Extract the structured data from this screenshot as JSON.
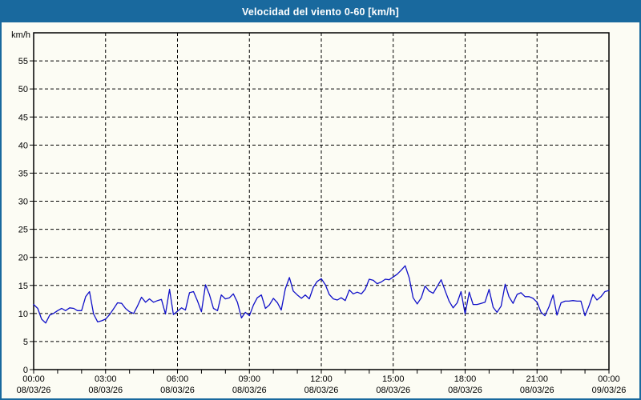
{
  "window": {
    "title": "Velocidad del viento 0-60 [km/h]"
  },
  "colors": {
    "titlebar_bg": "#19699E",
    "titlebar_text": "#FFFFFF",
    "frame": "#19699E",
    "page_bg": "#FCFCF4",
    "line": "#1010C8",
    "grid": "#000000",
    "text": "#000000"
  },
  "chart_data": {
    "type": "line",
    "title": "Velocidad del viento 0-60 [km/h]",
    "unit_label": "km/h",
    "x_unit": "hours",
    "xlim": [
      0,
      24
    ],
    "ylim": [
      0,
      60
    ],
    "y_tick_step": 5,
    "y_tick_max": 55,
    "grid": "dashed",
    "legend": "none",
    "x_minor_tick_hours": 1,
    "x_major_ticks": [
      {
        "hour": 0,
        "time": "00:00",
        "date": "08/03/26"
      },
      {
        "hour": 3,
        "time": "03:00",
        "date": "08/03/26"
      },
      {
        "hour": 6,
        "time": "06:00",
        "date": "08/03/26"
      },
      {
        "hour": 9,
        "time": "09:00",
        "date": "08/03/26"
      },
      {
        "hour": 12,
        "time": "12:00",
        "date": "08/03/26"
      },
      {
        "hour": 15,
        "time": "15:00",
        "date": "08/03/26"
      },
      {
        "hour": 18,
        "time": "18:00",
        "date": "08/03/26"
      },
      {
        "hour": 21,
        "time": "21:00",
        "date": "08/03/26"
      },
      {
        "hour": 24,
        "time": "00:00",
        "date": "09/03/26"
      }
    ],
    "series": [
      {
        "name": "velocidad-del-viento",
        "color": "#1010C8",
        "points": [
          [
            0,
            11.6
          ],
          [
            0.17,
            10.9
          ],
          [
            0.33,
            9
          ],
          [
            0.5,
            8.3
          ],
          [
            0.67,
            9.7
          ],
          [
            0.83,
            10
          ],
          [
            1,
            10.5
          ],
          [
            1.17,
            10.9
          ],
          [
            1.33,
            10.5
          ],
          [
            1.5,
            11
          ],
          [
            1.67,
            10.9
          ],
          [
            1.83,
            10.5
          ],
          [
            2,
            10.5
          ],
          [
            2.17,
            13
          ],
          [
            2.33,
            13.9
          ],
          [
            2.5,
            9.9
          ],
          [
            2.67,
            8.5
          ],
          [
            2.83,
            8.7
          ],
          [
            3,
            9
          ],
          [
            3.17,
            9.8
          ],
          [
            3.33,
            10.8
          ],
          [
            3.5,
            11.9
          ],
          [
            3.67,
            11.8
          ],
          [
            3.83,
            10.9
          ],
          [
            4,
            10.3
          ],
          [
            4.17,
            10
          ],
          [
            4.33,
            11.3
          ],
          [
            4.5,
            12.9
          ],
          [
            4.67,
            12
          ],
          [
            4.83,
            12.6
          ],
          [
            5,
            12
          ],
          [
            5.17,
            12.3
          ],
          [
            5.33,
            12.5
          ],
          [
            5.5,
            9.9
          ],
          [
            5.67,
            14.3
          ],
          [
            5.83,
            9.8
          ],
          [
            6,
            10.4
          ],
          [
            6.17,
            11
          ],
          [
            6.33,
            10.6
          ],
          [
            6.5,
            13.7
          ],
          [
            6.67,
            13.9
          ],
          [
            6.83,
            12.3
          ],
          [
            7,
            10.3
          ],
          [
            7.17,
            15.1
          ],
          [
            7.33,
            13.4
          ],
          [
            7.5,
            10.9
          ],
          [
            7.67,
            10.5
          ],
          [
            7.83,
            13.3
          ],
          [
            8,
            12.6
          ],
          [
            8.17,
            12.8
          ],
          [
            8.33,
            13.5
          ],
          [
            8.5,
            12
          ],
          [
            8.67,
            9.2
          ],
          [
            8.83,
            10.2
          ],
          [
            9,
            9.6
          ],
          [
            9.17,
            11.5
          ],
          [
            9.33,
            12.8
          ],
          [
            9.5,
            13.3
          ],
          [
            9.67,
            10.9
          ],
          [
            9.83,
            11.5
          ],
          [
            10,
            12.7
          ],
          [
            10.17,
            11.9
          ],
          [
            10.33,
            10.6
          ],
          [
            10.5,
            14.4
          ],
          [
            10.67,
            16.4
          ],
          [
            10.83,
            14
          ],
          [
            11,
            13.3
          ],
          [
            11.17,
            12.7
          ],
          [
            11.33,
            13.3
          ],
          [
            11.5,
            12.6
          ],
          [
            11.67,
            14.7
          ],
          [
            11.83,
            15.7
          ],
          [
            12,
            16.2
          ],
          [
            12.17,
            15.1
          ],
          [
            12.33,
            13.4
          ],
          [
            12.5,
            12.6
          ],
          [
            12.67,
            12.4
          ],
          [
            12.83,
            12.8
          ],
          [
            13,
            12.3
          ],
          [
            13.17,
            14.2
          ],
          [
            13.33,
            13.5
          ],
          [
            13.5,
            13.8
          ],
          [
            13.67,
            13.5
          ],
          [
            13.83,
            14.3
          ],
          [
            14,
            16.1
          ],
          [
            14.17,
            15.9
          ],
          [
            14.33,
            15.3
          ],
          [
            14.5,
            15.6
          ],
          [
            14.67,
            16.1
          ],
          [
            14.83,
            16
          ],
          [
            15,
            16.5
          ],
          [
            15.17,
            17
          ],
          [
            15.33,
            17.7
          ],
          [
            15.5,
            18.5
          ],
          [
            15.67,
            16.3
          ],
          [
            15.83,
            12.8
          ],
          [
            16,
            11.7
          ],
          [
            16.17,
            12.8
          ],
          [
            16.33,
            14.9
          ],
          [
            16.5,
            14
          ],
          [
            16.67,
            13.6
          ],
          [
            16.83,
            14.8
          ],
          [
            17,
            16
          ],
          [
            17.17,
            14
          ],
          [
            17.33,
            12.2
          ],
          [
            17.5,
            11
          ],
          [
            17.67,
            11.9
          ],
          [
            17.83,
            13.9
          ],
          [
            18,
            9.9
          ],
          [
            18.17,
            13.8
          ],
          [
            18.33,
            11.6
          ],
          [
            18.5,
            11.6
          ],
          [
            18.67,
            11.8
          ],
          [
            18.83,
            12
          ],
          [
            19,
            14.3
          ],
          [
            19.17,
            11.1
          ],
          [
            19.33,
            10.2
          ],
          [
            19.5,
            11.3
          ],
          [
            19.67,
            15.2
          ],
          [
            19.83,
            13
          ],
          [
            20,
            11.8
          ],
          [
            20.17,
            13.4
          ],
          [
            20.33,
            13.7
          ],
          [
            20.5,
            13
          ],
          [
            20.67,
            13
          ],
          [
            20.83,
            12.7
          ],
          [
            21,
            12
          ],
          [
            21.17,
            10.2
          ],
          [
            21.33,
            9.6
          ],
          [
            21.5,
            11.2
          ],
          [
            21.67,
            13.3
          ],
          [
            21.83,
            9.7
          ],
          [
            22,
            11.9
          ],
          [
            22.17,
            12.2
          ],
          [
            22.33,
            12.2
          ],
          [
            22.5,
            12.3
          ],
          [
            22.67,
            12.2
          ],
          [
            22.83,
            12.2
          ],
          [
            23,
            9.6
          ],
          [
            23.17,
            11.4
          ],
          [
            23.33,
            13.4
          ],
          [
            23.5,
            12.4
          ],
          [
            23.67,
            13
          ],
          [
            23.83,
            13.9
          ],
          [
            24,
            14.1
          ]
        ]
      }
    ]
  }
}
